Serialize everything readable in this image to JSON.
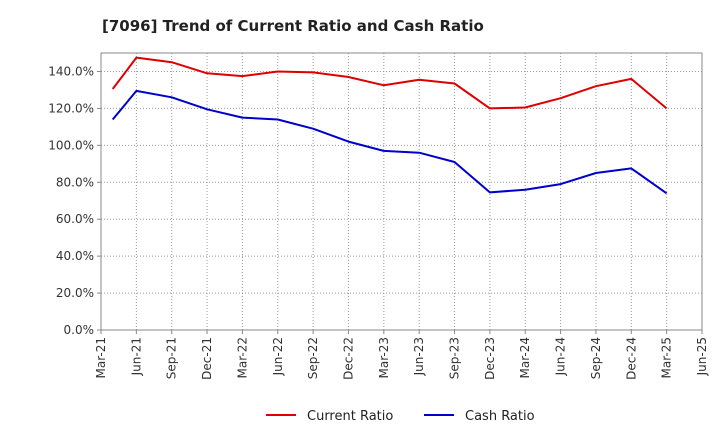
{
  "chart_data": {
    "type": "line",
    "title": "[7096]  Trend of Current Ratio and Cash Ratio",
    "xlabel": "",
    "ylabel": "",
    "x_ticks": [
      "Mar-21",
      "Jun-21",
      "Sep-21",
      "Dec-21",
      "Mar-22",
      "Jun-22",
      "Sep-22",
      "Dec-22",
      "Mar-23",
      "Jun-23",
      "Sep-23",
      "Dec-23",
      "Mar-24",
      "Jun-24",
      "Sep-24",
      "Dec-24",
      "Mar-25",
      "Jun-25"
    ],
    "y_ticks": [
      "0.0%",
      "20.0%",
      "40.0%",
      "60.0%",
      "80.0%",
      "100.0%",
      "120.0%",
      "140.0%"
    ],
    "y_tick_values": [
      0,
      20,
      40,
      60,
      80,
      100,
      120,
      140
    ],
    "ylim": [
      0,
      150
    ],
    "grid": true,
    "legend_position": "bottom-center",
    "x": [
      "Apr-21",
      "Jun-21",
      "Sep-21",
      "Dec-21",
      "Mar-22",
      "Jun-22",
      "Sep-22",
      "Dec-22",
      "Mar-23",
      "Jun-23",
      "Sep-23",
      "Dec-23",
      "Mar-24",
      "Jun-24",
      "Sep-24",
      "Dec-24",
      "Mar-25"
    ],
    "x_index": [
      0.33,
      1,
      2,
      3,
      4,
      5,
      6,
      7,
      8,
      9,
      10,
      11,
      12,
      13,
      14,
      15,
      16
    ],
    "series": [
      {
        "name": "Current Ratio",
        "color": "#dd0000",
        "values": [
          130.5,
          147.5,
          145.0,
          139.0,
          137.5,
          140.0,
          139.5,
          137.0,
          132.5,
          135.5,
          133.5,
          120.0,
          120.5,
          125.5,
          132.0,
          136.0,
          120.0
        ]
      },
      {
        "name": "Cash Ratio",
        "color": "#0000cc",
        "values": [
          114.0,
          129.5,
          126.0,
          119.5,
          115.0,
          114.0,
          109.0,
          102.0,
          97.0,
          96.0,
          91.0,
          74.5,
          76.0,
          79.0,
          85.0,
          87.5,
          74.0
        ]
      }
    ]
  }
}
